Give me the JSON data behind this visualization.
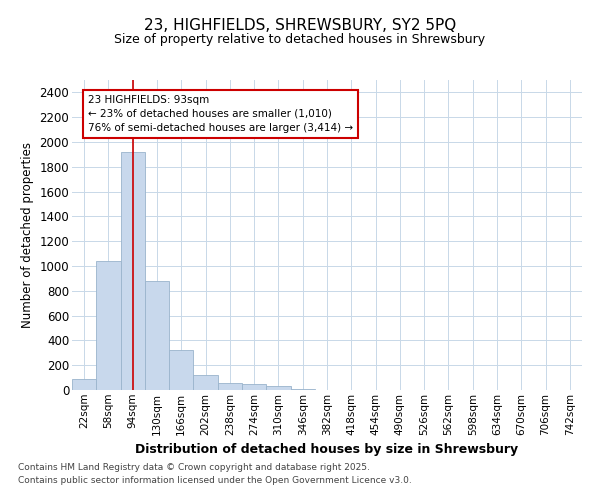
{
  "title": "23, HIGHFIELDS, SHREWSBURY, SY2 5PQ",
  "subtitle": "Size of property relative to detached houses in Shrewsbury",
  "xlabel": "Distribution of detached houses by size in Shrewsbury",
  "ylabel": "Number of detached properties",
  "bin_labels": [
    "22sqm",
    "58sqm",
    "94sqm",
    "130sqm",
    "166sqm",
    "202sqm",
    "238sqm",
    "274sqm",
    "310sqm",
    "346sqm",
    "382sqm",
    "418sqm",
    "454sqm",
    "490sqm",
    "526sqm",
    "562sqm",
    "598sqm",
    "634sqm",
    "670sqm",
    "706sqm",
    "742sqm"
  ],
  "bar_heights": [
    90,
    1040,
    1920,
    880,
    320,
    120,
    60,
    50,
    30,
    10,
    0,
    0,
    0,
    0,
    0,
    0,
    0,
    0,
    0,
    0,
    0
  ],
  "bar_color": "#c8d8ec",
  "bar_edge_color": "#9ab4cc",
  "ylim": [
    0,
    2500
  ],
  "yticks": [
    0,
    200,
    400,
    600,
    800,
    1000,
    1200,
    1400,
    1600,
    1800,
    2000,
    2200,
    2400
  ],
  "grid_color": "#c8d8e8",
  "plot_bg_color": "#ffffff",
  "fig_bg_color": "#ffffff",
  "red_line_x": 2.0,
  "annotation_text": "23 HIGHFIELDS: 93sqm\n← 23% of detached houses are smaller (1,010)\n76% of semi-detached houses are larger (3,414) →",
  "annotation_box_color": "#ffffff",
  "annotation_edge_color": "#cc0000",
  "footer_line1": "Contains HM Land Registry data © Crown copyright and database right 2025.",
  "footer_line2": "Contains public sector information licensed under the Open Government Licence v3.0."
}
